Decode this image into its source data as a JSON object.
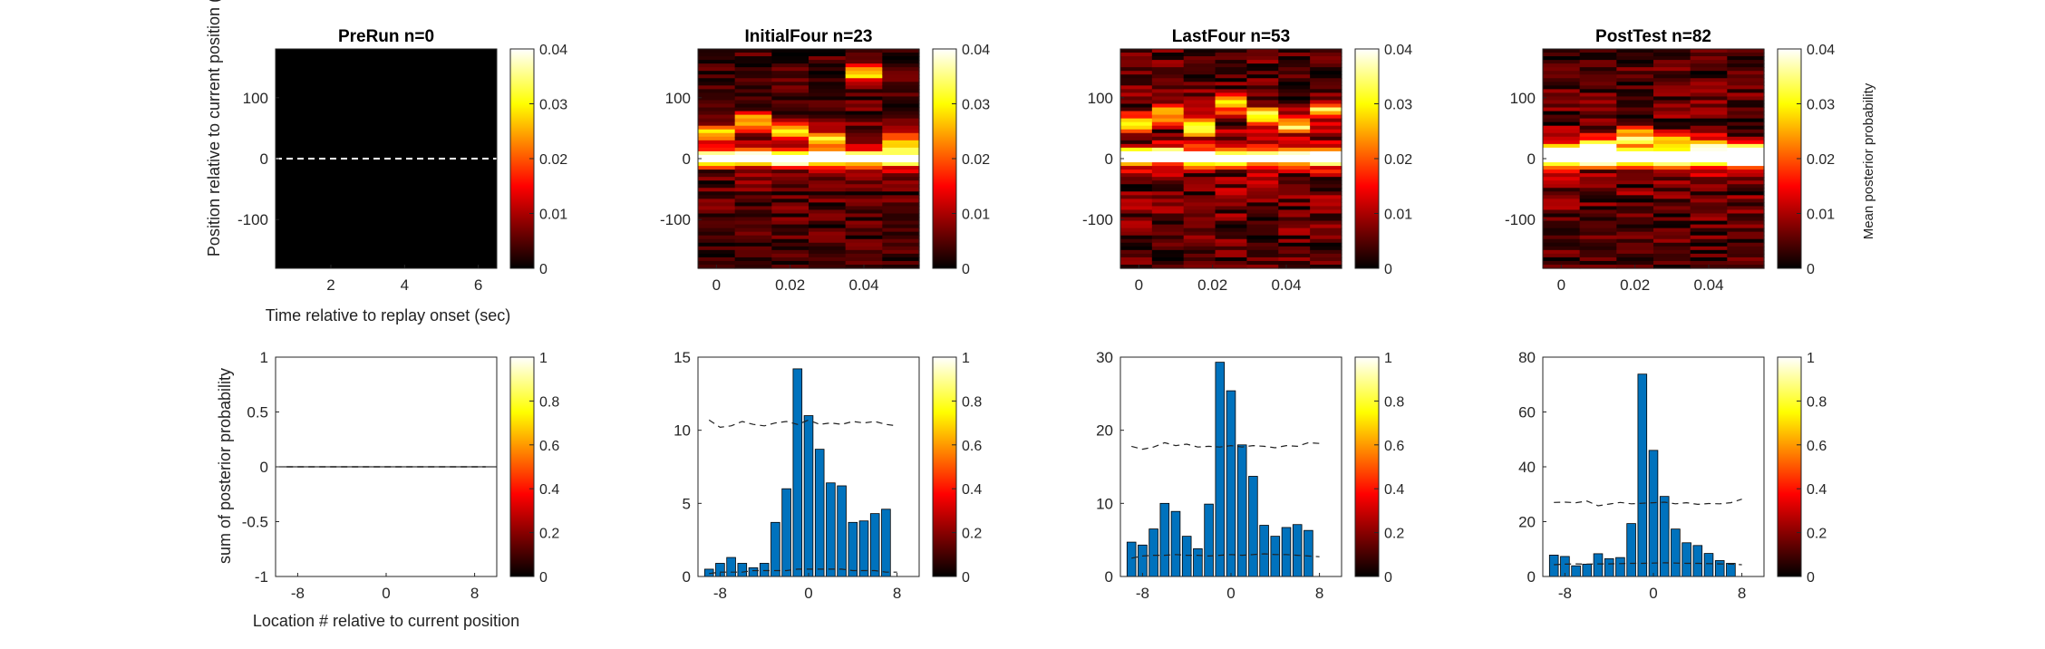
{
  "figure": {
    "top_row_ylabel": "Position relative to current position (de",
    "top_row_xlabel": "Time relative to replay onset (sec)",
    "bottom_row_ylabel": "sum of posterior probability",
    "bottom_row_xlabel": "Location # relative to current position",
    "top_colorbar_label": "Mean posterior probability"
  },
  "colors": {
    "bar": "#0072BD",
    "bar_edge": "#000000",
    "dashed_line": "#222222",
    "colormap": "hot"
  },
  "chart_data": [
    {
      "panel": "top-1",
      "type": "heatmap",
      "title": "PreRun n=0",
      "xticks": [
        "2",
        "4",
        "6"
      ],
      "xlim": [
        0.5,
        6.5
      ],
      "yticks": [
        "100",
        "0",
        "-100"
      ],
      "ylim": [
        -180,
        180
      ],
      "colorbar": {
        "ticks": [
          "0",
          "0.01",
          "0.02",
          "0.03",
          "0.04"
        ],
        "range": [
          0,
          0.04
        ]
      },
      "dashed_zero_line": true,
      "empty": true
    },
    {
      "panel": "top-2",
      "type": "heatmap",
      "title": "InitialFour n=23",
      "xticks": [
        "0",
        "0.02",
        "0.04"
      ],
      "xlim": [
        -0.005,
        0.055
      ],
      "yticks": [
        "100",
        "0",
        "-100"
      ],
      "ylim": [
        -180,
        180
      ],
      "colorbar": {
        "ticks": [
          "0",
          "0.01",
          "0.02",
          "0.03",
          "0.04"
        ],
        "range": [
          0,
          0.04
        ]
      },
      "dashed_zero_line": true
    },
    {
      "panel": "top-3",
      "type": "heatmap",
      "title": "LastFour n=53",
      "xticks": [
        "0",
        "0.02",
        "0.04"
      ],
      "xlim": [
        -0.005,
        0.055
      ],
      "yticks": [
        "100",
        "0",
        "-100"
      ],
      "ylim": [
        -180,
        180
      ],
      "colorbar": {
        "ticks": [
          "0",
          "0.01",
          "0.02",
          "0.03",
          "0.04"
        ],
        "range": [
          0,
          0.04
        ]
      },
      "dashed_zero_line": true
    },
    {
      "panel": "top-4",
      "type": "heatmap",
      "title": "PostTest n=82",
      "xticks": [
        "0",
        "0.02",
        "0.04"
      ],
      "xlim": [
        -0.005,
        0.055
      ],
      "yticks": [
        "100",
        "0",
        "-100"
      ],
      "ylim": [
        -180,
        180
      ],
      "colorbar": {
        "ticks": [
          "0",
          "0.01",
          "0.02",
          "0.03",
          "0.04"
        ],
        "range": [
          0,
          0.04
        ]
      },
      "dashed_zero_line": true
    },
    {
      "panel": "bottom-1",
      "type": "bar",
      "x": [
        -9,
        -8,
        -7,
        -6,
        -5,
        -4,
        -3,
        -2,
        -1,
        0,
        1,
        2,
        3,
        4,
        5,
        6,
        7,
        8,
        9
      ],
      "values": [
        0,
        0,
        0,
        0,
        0,
        0,
        0,
        0,
        0,
        0,
        0,
        0,
        0,
        0,
        0,
        0,
        0,
        0,
        0
      ],
      "xticks": [
        "-8",
        "0",
        "8"
      ],
      "yticks": [
        "1",
        "0.5",
        "0",
        "-0.5",
        "-1"
      ],
      "ylim": [
        -1,
        1
      ],
      "colorbar": {
        "ticks": [
          "0",
          "0.2",
          "0.4",
          "0.6",
          "0.8",
          "1"
        ],
        "range": [
          0,
          1
        ]
      },
      "shuffle_upper": [
        0,
        0,
        0,
        0,
        0,
        0,
        0,
        0,
        0,
        0,
        0,
        0,
        0,
        0,
        0,
        0,
        0,
        0,
        0
      ],
      "shuffle_lower": [
        0,
        0,
        0,
        0,
        0,
        0,
        0,
        0,
        0,
        0,
        0,
        0,
        0,
        0,
        0,
        0,
        0,
        0,
        0
      ]
    },
    {
      "panel": "bottom-2",
      "type": "bar",
      "x": [
        -9,
        -8,
        -7,
        -6,
        -5,
        -4,
        -3,
        -2,
        -1,
        0,
        1,
        2,
        3,
        4,
        5,
        6,
        7,
        8
      ],
      "values": [
        0.5,
        0.9,
        1.3,
        0.9,
        0.6,
        0.9,
        3.7,
        6.0,
        14.2,
        11.0,
        8.7,
        6.4,
        6.2,
        3.7,
        3.8,
        4.3,
        4.6,
        0
      ],
      "xticks": [
        "-8",
        "0",
        "8"
      ],
      "yticks": [
        "15",
        "10",
        "5",
        "0"
      ],
      "ylim": [
        0,
        15
      ],
      "colorbar": {
        "ticks": [
          "0",
          "0.2",
          "0.4",
          "0.6",
          "0.8",
          "1"
        ],
        "range": [
          0,
          1
        ]
      },
      "shuffle_upper": [
        10.7,
        10.2,
        10.3,
        10.6,
        10.4,
        10.3,
        10.5,
        10.6,
        10.4,
        10.7,
        10.4,
        10.5,
        10.4,
        10.6,
        10.5,
        10.6,
        10.4,
        10.3
      ],
      "shuffle_lower": [
        0.2,
        0.3,
        0.3,
        0.3,
        0.4,
        0.4,
        0.4,
        0.4,
        0.5,
        0.5,
        0.5,
        0.5,
        0.5,
        0.4,
        0.4,
        0.4,
        0.3,
        0.3
      ]
    },
    {
      "panel": "bottom-3",
      "type": "bar",
      "x": [
        -9,
        -8,
        -7,
        -6,
        -5,
        -4,
        -3,
        -2,
        -1,
        0,
        1,
        2,
        3,
        4,
        5,
        6,
        7,
        8
      ],
      "values": [
        4.7,
        4.3,
        6.5,
        10.0,
        8.9,
        5.5,
        3.8,
        9.9,
        29.3,
        25.4,
        18.0,
        13.7,
        7.0,
        5.5,
        6.7,
        7.1,
        6.3,
        0
      ],
      "xticks": [
        "-8",
        "0",
        "8"
      ],
      "yticks": [
        "30",
        "20",
        "10",
        "0"
      ],
      "ylim": [
        0,
        30
      ],
      "colorbar": {
        "ticks": [
          "0",
          "0.2",
          "0.4",
          "0.6",
          "0.8",
          "1"
        ],
        "range": [
          0,
          1
        ]
      },
      "shuffle_upper": [
        17.8,
        17.4,
        17.7,
        18.3,
        17.9,
        18.1,
        17.7,
        17.8,
        17.7,
        17.9,
        17.7,
        17.9,
        17.8,
        17.6,
        17.9,
        17.8,
        18.3,
        18.2
      ],
      "shuffle_lower": [
        2.5,
        2.8,
        2.9,
        2.9,
        3.0,
        2.9,
        2.9,
        2.8,
        2.9,
        3.0,
        2.9,
        3.0,
        3.1,
        3.0,
        3.0,
        2.9,
        2.8,
        2.7
      ]
    },
    {
      "panel": "bottom-4",
      "type": "bar",
      "x": [
        -9,
        -8,
        -7,
        -6,
        -5,
        -4,
        -3,
        -2,
        -1,
        0,
        1,
        2,
        3,
        4,
        5,
        6,
        7,
        8
      ],
      "values": [
        7.8,
        7.3,
        3.9,
        4.5,
        8.3,
        6.5,
        6.9,
        19.3,
        73.8,
        46.0,
        29.2,
        17.3,
        12.3,
        11.3,
        8.4,
        5.8,
        4.8,
        0
      ],
      "xticks": [
        "-8",
        "0",
        "8"
      ],
      "yticks": [
        "80",
        "60",
        "40",
        "20",
        "0"
      ],
      "ylim": [
        0,
        80
      ],
      "colorbar": {
        "ticks": [
          "0",
          "0.2",
          "0.4",
          "0.6",
          "0.8",
          "1"
        ],
        "range": [
          0,
          1
        ]
      },
      "shuffle_upper": [
        27.0,
        27.1,
        26.9,
        27.5,
        25.8,
        26.4,
        27.0,
        26.5,
        26.7,
        26.9,
        27.1,
        26.5,
        26.9,
        26.3,
        26.6,
        26.5,
        26.9,
        28.2
      ],
      "shuffle_lower": [
        4.3,
        4.5,
        4.6,
        4.5,
        4.6,
        4.6,
        4.7,
        4.8,
        4.8,
        4.9,
        5.0,
        4.9,
        4.8,
        4.8,
        4.7,
        4.6,
        4.5,
        4.3
      ]
    }
  ]
}
